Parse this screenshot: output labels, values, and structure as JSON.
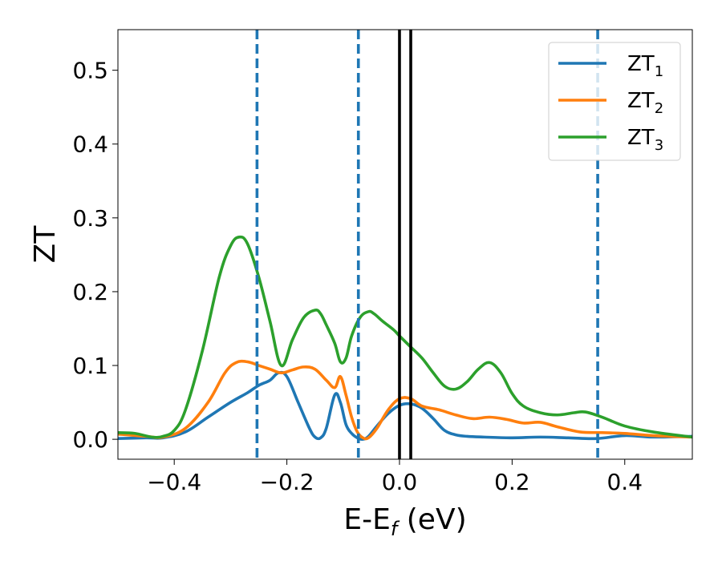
{
  "chart_data": {
    "type": "line",
    "title": "",
    "xlabel": {
      "main": "E-E",
      "sub": "f",
      "unit": " (eV)"
    },
    "ylabel": "ZT",
    "xlim": [
      -0.5,
      0.52
    ],
    "ylim": [
      -0.027,
      0.555
    ],
    "xticks": [
      -0.4,
      -0.2,
      0.0,
      0.2,
      0.4
    ],
    "xtick_labels": [
      "−0.4",
      "−0.2",
      "0.0",
      "0.2",
      "0.4"
    ],
    "yticks": [
      0.0,
      0.1,
      0.2,
      0.3,
      0.4,
      0.5
    ],
    "ytick_labels": [
      "0.0",
      "0.1",
      "0.2",
      "0.3",
      "0.4",
      "0.5"
    ],
    "grid": false,
    "legend_position": "top-right",
    "series": [
      {
        "name": "ZT",
        "sub": "1",
        "color": "#1f77b4",
        "x": [
          -0.5,
          -0.45,
          -0.42,
          -0.38,
          -0.34,
          -0.3,
          -0.27,
          -0.25,
          -0.23,
          -0.215,
          -0.2,
          -0.18,
          -0.16,
          -0.15,
          -0.14,
          -0.13,
          -0.115,
          -0.105,
          -0.095,
          -0.085,
          -0.075,
          -0.065,
          -0.055,
          -0.04,
          -0.02,
          0.0,
          0.02,
          0.04,
          0.06,
          0.08,
          0.1,
          0.12,
          0.15,
          0.2,
          0.25,
          0.3,
          0.35,
          0.4,
          0.45,
          0.52
        ],
        "y": [
          0.001,
          0.002,
          0.002,
          0.01,
          0.03,
          0.05,
          0.063,
          0.073,
          0.08,
          0.09,
          0.085,
          0.05,
          0.015,
          0.003,
          0.002,
          0.015,
          0.06,
          0.05,
          0.02,
          0.008,
          0.002,
          0.0,
          0.004,
          0.018,
          0.035,
          0.046,
          0.048,
          0.042,
          0.028,
          0.012,
          0.006,
          0.004,
          0.003,
          0.002,
          0.003,
          0.002,
          0.001,
          0.005,
          0.003,
          0.004
        ]
      },
      {
        "name": "ZT",
        "sub": "2",
        "color": "#ff7f0e",
        "x": [
          -0.5,
          -0.45,
          -0.42,
          -0.38,
          -0.34,
          -0.31,
          -0.29,
          -0.27,
          -0.25,
          -0.23,
          -0.21,
          -0.19,
          -0.17,
          -0.15,
          -0.13,
          -0.115,
          -0.105,
          -0.095,
          -0.085,
          -0.075,
          -0.065,
          -0.055,
          -0.04,
          -0.02,
          0.0,
          0.02,
          0.04,
          0.07,
          0.1,
          0.13,
          0.16,
          0.19,
          0.22,
          0.25,
          0.28,
          0.32,
          0.36,
          0.4,
          0.45,
          0.52
        ],
        "y": [
          0.007,
          0.004,
          0.003,
          0.015,
          0.05,
          0.09,
          0.104,
          0.105,
          0.1,
          0.095,
          0.09,
          0.094,
          0.098,
          0.095,
          0.08,
          0.07,
          0.085,
          0.06,
          0.03,
          0.01,
          0.002,
          0.002,
          0.015,
          0.04,
          0.055,
          0.055,
          0.045,
          0.04,
          0.033,
          0.028,
          0.03,
          0.027,
          0.022,
          0.023,
          0.017,
          0.01,
          0.009,
          0.008,
          0.005,
          0.003
        ]
      },
      {
        "name": "ZT",
        "sub": "3",
        "color": "#2ca02c",
        "x": [
          -0.5,
          -0.47,
          -0.44,
          -0.42,
          -0.4,
          -0.38,
          -0.35,
          -0.32,
          -0.3,
          -0.285,
          -0.27,
          -0.25,
          -0.23,
          -0.21,
          -0.19,
          -0.17,
          -0.15,
          -0.14,
          -0.13,
          -0.115,
          -0.105,
          -0.095,
          -0.085,
          -0.07,
          -0.055,
          -0.045,
          -0.03,
          -0.01,
          0.0,
          0.02,
          0.04,
          0.06,
          0.08,
          0.1,
          0.12,
          0.14,
          0.16,
          0.18,
          0.2,
          0.22,
          0.25,
          0.28,
          0.31,
          0.33,
          0.36,
          0.4,
          0.45,
          0.52
        ],
        "y": [
          0.009,
          0.008,
          0.003,
          0.004,
          0.012,
          0.04,
          0.12,
          0.22,
          0.262,
          0.274,
          0.265,
          0.22,
          0.16,
          0.1,
          0.135,
          0.165,
          0.175,
          0.17,
          0.155,
          0.13,
          0.105,
          0.11,
          0.14,
          0.165,
          0.173,
          0.17,
          0.16,
          0.148,
          0.14,
          0.125,
          0.11,
          0.09,
          0.072,
          0.068,
          0.078,
          0.095,
          0.104,
          0.09,
          0.062,
          0.045,
          0.036,
          0.033,
          0.036,
          0.037,
          0.03,
          0.018,
          0.01,
          0.003
        ]
      }
    ],
    "vlines": [
      {
        "x": -0.253,
        "color": "#1f77b4",
        "style": "dashed"
      },
      {
        "x": -0.073,
        "color": "#1f77b4",
        "style": "dashed"
      },
      {
        "x": 0.352,
        "color": "#1f77b4",
        "style": "dashed"
      },
      {
        "x": 0.0,
        "color": "#000000",
        "style": "solid"
      },
      {
        "x": 0.02,
        "color": "#000000",
        "style": "solid"
      }
    ]
  }
}
